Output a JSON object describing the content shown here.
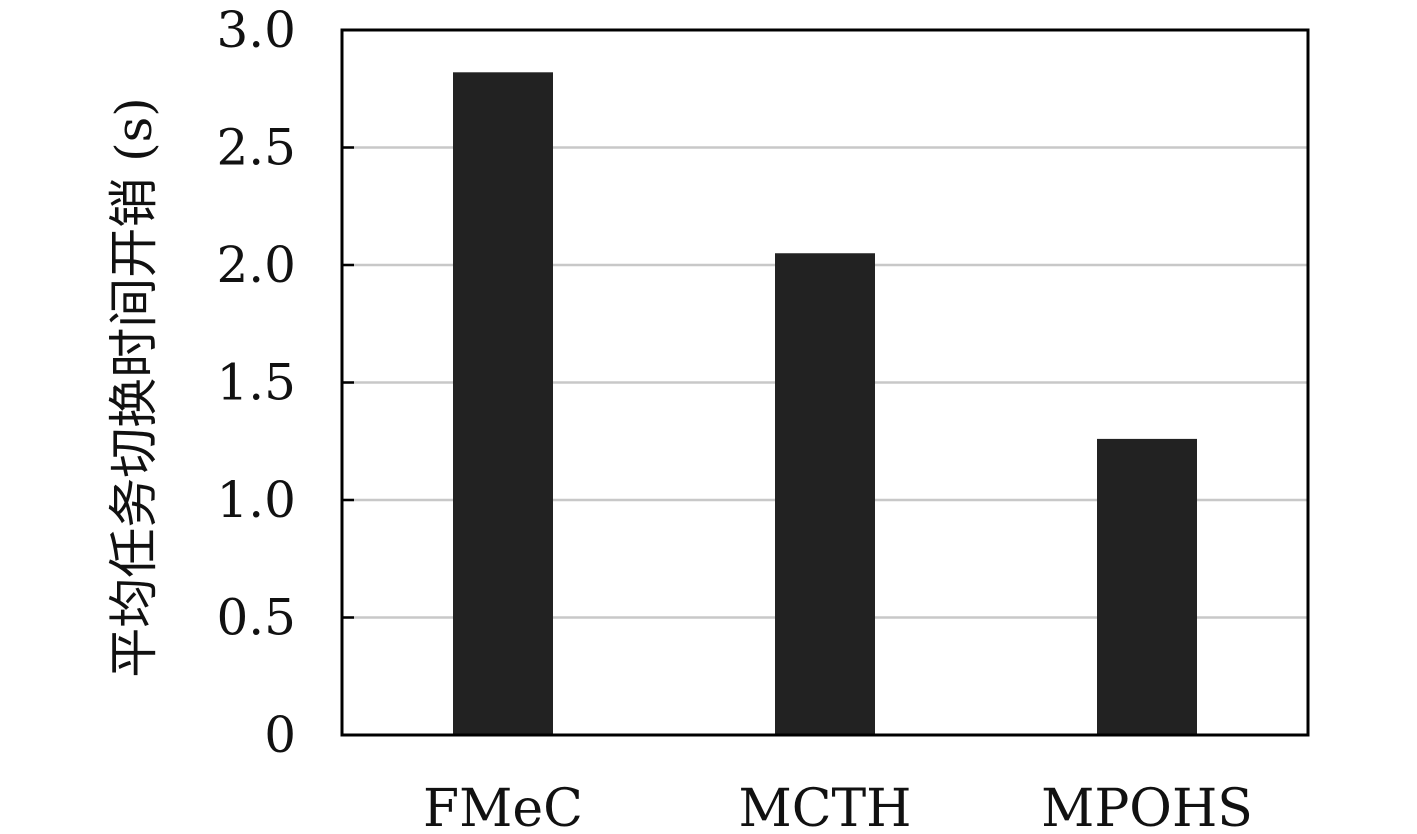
{
  "chart_data": {
    "type": "bar",
    "title": "",
    "xlabel": "",
    "ylabel": "平均任务切换时间开销 (s)",
    "categories": [
      "FMeC",
      "MCTH",
      "MPOHS"
    ],
    "values": [
      2.82,
      2.05,
      1.26
    ],
    "ylim": [
      0,
      3.0
    ],
    "yticks": [
      0,
      0.5,
      1.0,
      1.5,
      2.0,
      2.5,
      3.0
    ],
    "ytick_labels": [
      "0",
      "0.5",
      "1.0",
      "1.5",
      "2.0",
      "2.5",
      "3.0"
    ],
    "grid": "horizontal",
    "bar_color": "#222222",
    "grid_color": "#c8c8c8",
    "axis_color": "#000000"
  }
}
